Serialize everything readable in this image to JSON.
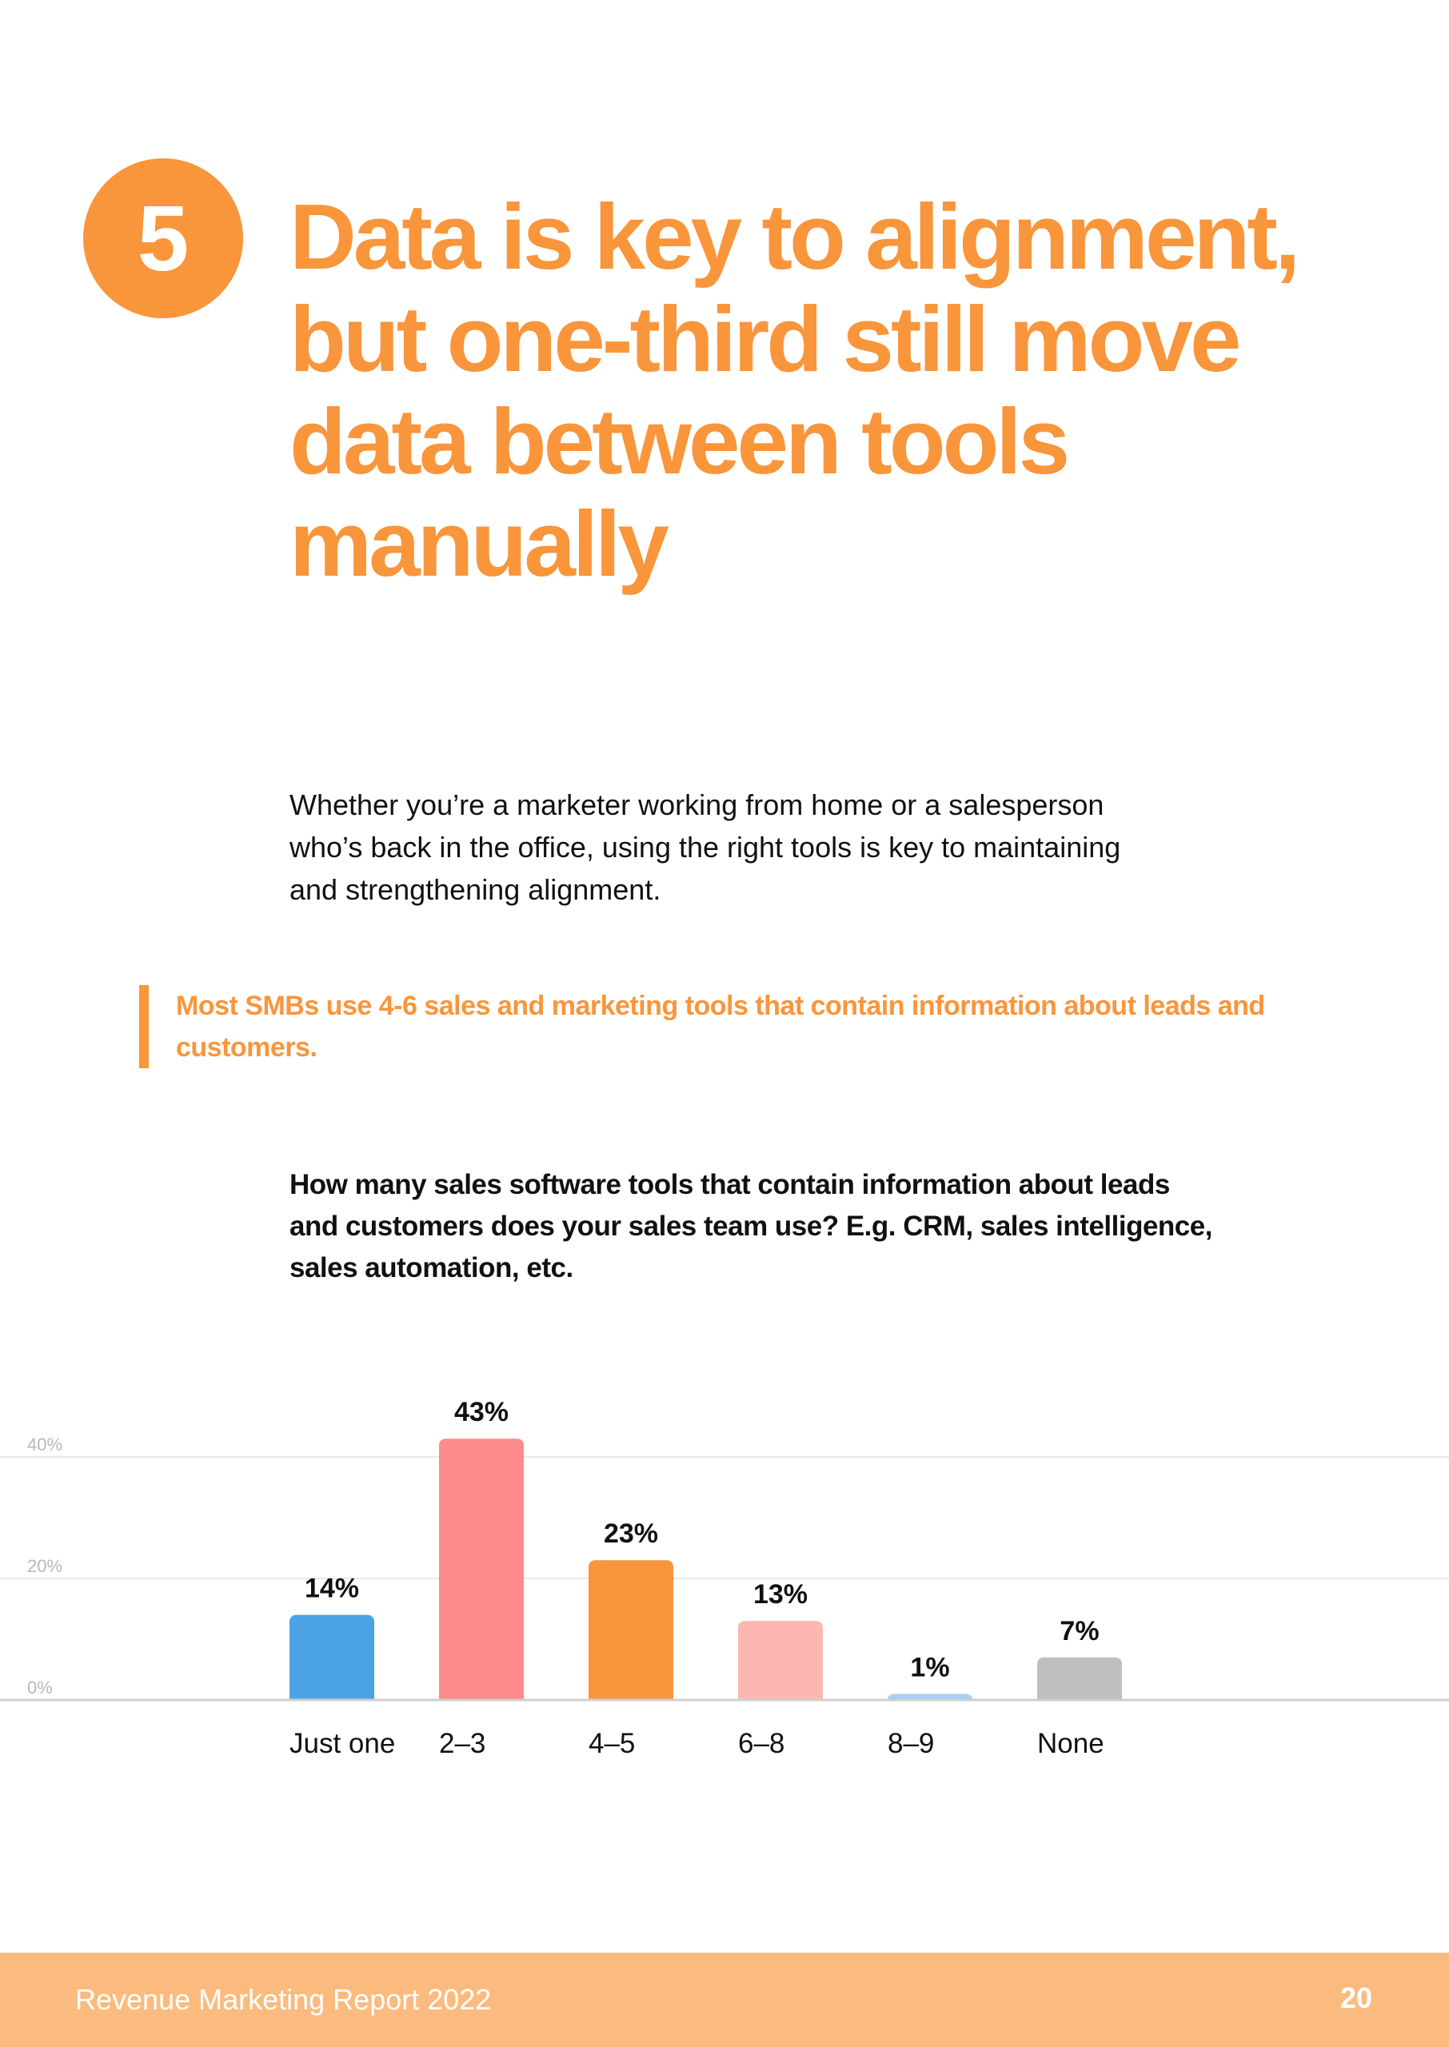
{
  "section": {
    "number": "5"
  },
  "headline": "Data is key to alignment, but one-third still move data between tools manually",
  "intro": "Whether you’re a marketer working from home or a salesperson who’s back in the office, using the right tools is key to maintaining and strengthening alignment.",
  "callout": "Most SMBs use 4-6 sales and marketing tools that contain information about leads and customers.",
  "question": "How many sales software tools that contain information about leads and customers does your sales team use? E.g. CRM, sales intelligence, sales automation, etc.",
  "colors": {
    "accent": "#f9953b",
    "footer": "#fbbb7e"
  },
  "chart_data": {
    "type": "bar",
    "categories": [
      "Just one",
      "2–3",
      "4–5",
      "6–8",
      "8–9",
      "None"
    ],
    "values": [
      14,
      43,
      23,
      13,
      1,
      7
    ],
    "data_labels": [
      "14%",
      "43%",
      "23%",
      "13%",
      "1%",
      "7%"
    ],
    "bar_colors": [
      "#4ba3e6",
      "#fe8a8a",
      "#f9953b",
      "#fdb6b0",
      "#a7d0f3",
      "#bfbfbf"
    ],
    "ylim": [
      0,
      40
    ],
    "yticks": [
      0,
      20,
      40
    ],
    "ytick_labels": [
      "0%",
      "20%",
      "40%"
    ],
    "grid": true,
    "legend": false,
    "title": "",
    "xlabel": "",
    "ylabel": ""
  },
  "footer": {
    "title": "Revenue Marketing Report 2022",
    "page": "20"
  }
}
